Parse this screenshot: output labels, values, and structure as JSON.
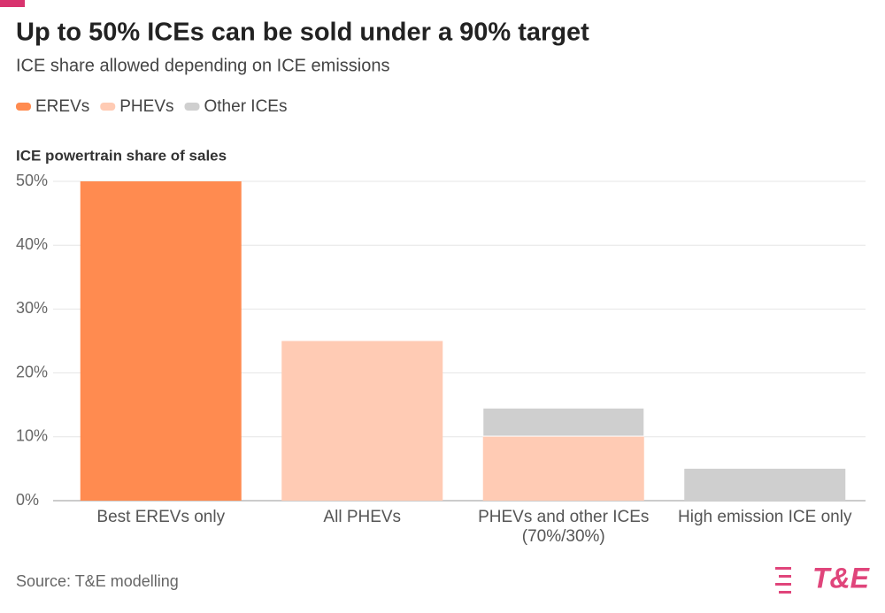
{
  "chart_data": {
    "type": "bar",
    "stacked": true,
    "title": "Up to 50% ICEs can be sold under a 90% target",
    "subtitle": "ICE share allowed depending on ICE emissions",
    "y_label": "ICE powertrain share of sales",
    "categories": [
      "Best EREVs only",
      "All PHEVs",
      "PHEVs and other ICEs (70%/30%)",
      "High emission ICE only"
    ],
    "series": [
      {
        "name": "EREVs",
        "color": "#ff8b50",
        "values": [
          50,
          null,
          null,
          null
        ]
      },
      {
        "name": "PHEVs",
        "color": "#ffcbb4",
        "values": [
          null,
          25,
          10.1,
          null
        ]
      },
      {
        "name": "Other ICEs",
        "color": "#cfcfcf",
        "values": [
          null,
          null,
          4.4,
          5
        ]
      }
    ],
    "ylim": [
      0,
      50
    ],
    "yticks": [
      {
        "value": 0,
        "label": "0%"
      },
      {
        "value": 10,
        "label": "10%"
      },
      {
        "value": 20,
        "label": "20%"
      },
      {
        "value": 30,
        "label": "30%"
      },
      {
        "value": 40,
        "label": "40%"
      },
      {
        "value": 50,
        "label": "50%"
      }
    ],
    "grid": true,
    "legend": "top-left",
    "source": "Source: T&E modelling",
    "logo": "T&E"
  }
}
